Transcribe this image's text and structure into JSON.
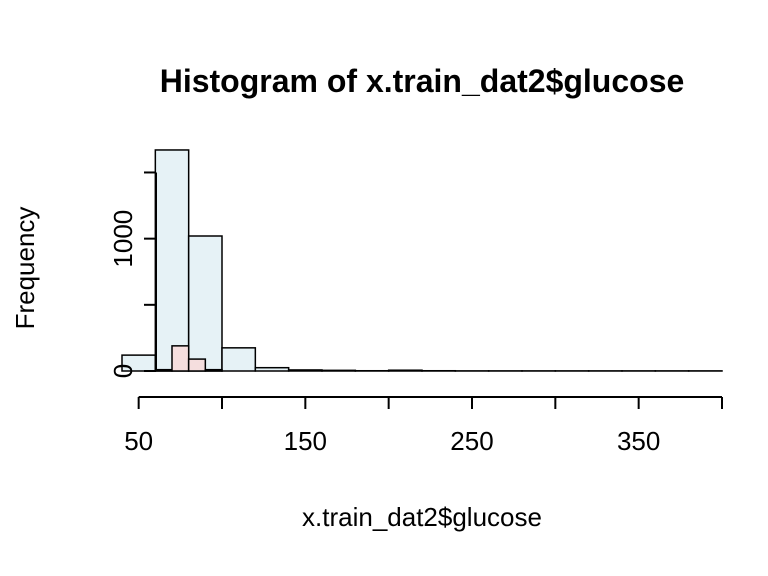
{
  "chart_data": {
    "type": "bar",
    "title": "Histogram of x.train_dat2$glucose",
    "xlabel": "x.train_dat2$glucose",
    "ylabel": "Frequency",
    "xlim": [
      40,
      400
    ],
    "ylim": [
      0,
      1700
    ],
    "x_ticks": [
      50,
      100,
      150,
      200,
      250,
      300,
      350,
      400
    ],
    "x_tick_labels": [
      "50",
      "150",
      "250",
      "350"
    ],
    "y_ticks": [
      0,
      500,
      1000,
      1500
    ],
    "y_tick_labels": [
      "0",
      "1000"
    ],
    "series": [
      {
        "color": "#e6f2f6",
        "bins": [
          {
            "start": 40,
            "end": 60,
            "count": 120
          },
          {
            "start": 60,
            "end": 80,
            "count": 1670
          },
          {
            "start": 80,
            "end": 100,
            "count": 1020
          },
          {
            "start": 100,
            "end": 120,
            "count": 175
          },
          {
            "start": 120,
            "end": 140,
            "count": 25
          },
          {
            "start": 140,
            "end": 160,
            "count": 8
          },
          {
            "start": 160,
            "end": 180,
            "count": 5
          },
          {
            "start": 180,
            "end": 200,
            "count": 2
          },
          {
            "start": 200,
            "end": 220,
            "count": 6
          },
          {
            "start": 220,
            "end": 240,
            "count": 2
          },
          {
            "start": 240,
            "end": 260,
            "count": 1
          },
          {
            "start": 260,
            "end": 280,
            "count": 1
          },
          {
            "start": 280,
            "end": 300,
            "count": 1
          },
          {
            "start": 300,
            "end": 320,
            "count": 1
          },
          {
            "start": 320,
            "end": 340,
            "count": 1
          },
          {
            "start": 340,
            "end": 360,
            "count": 1
          },
          {
            "start": 360,
            "end": 380,
            "count": 1
          },
          {
            "start": 380,
            "end": 400,
            "count": 1
          }
        ]
      },
      {
        "color": "#f5dede",
        "bins": [
          {
            "start": 60,
            "end": 70,
            "count": 10
          },
          {
            "start": 70,
            "end": 80,
            "count": 190
          },
          {
            "start": 80,
            "end": 90,
            "count": 90
          },
          {
            "start": 90,
            "end": 100,
            "count": 10
          }
        ]
      }
    ]
  }
}
